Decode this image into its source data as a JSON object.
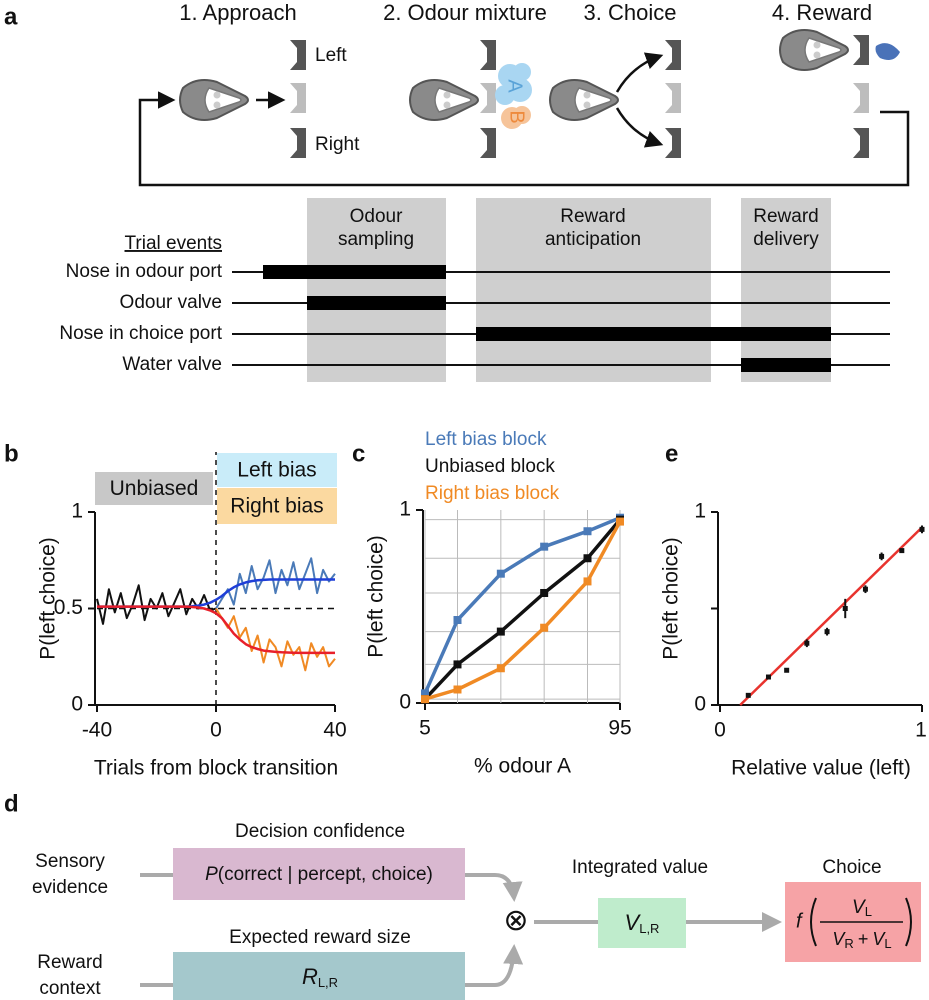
{
  "panels": {
    "a": {
      "label": "a",
      "steps": [
        "1. Approach",
        "2. Odour mixture",
        "3. Choice",
        "4. Reward"
      ],
      "ports": [
        "Left",
        "Right"
      ],
      "odours": [
        "A",
        "B"
      ],
      "phases": [
        [
          "Odour",
          "sampling"
        ],
        [
          "Reward",
          "anticipation"
        ],
        [
          "Reward",
          "delivery"
        ]
      ],
      "events_title": "Trial events",
      "events": [
        "Nose in odour port",
        "Odour valve",
        "Nose in choice port",
        "Water valve"
      ]
    },
    "d": {
      "label": "d",
      "sensory": [
        "Sensory",
        "evidence"
      ],
      "context": [
        "Reward",
        "context"
      ],
      "confidence_title": "Decision confidence",
      "confidence_formula": [
        "P",
        "(correct | percept, choice)"
      ],
      "reward_title": "Expected reward size",
      "reward_symbol": {
        "main": "R",
        "sub": "L,R"
      },
      "combine": "⊗",
      "integrated_title": "Integrated value",
      "integrated_symbol": {
        "main": "V",
        "sub": "L,R"
      },
      "choice_title": "Choice",
      "choice_formula": {
        "f": "f",
        "numerator": {
          "main": "V",
          "sub": "L"
        },
        "denominator": [
          {
            "main": "V",
            "sub": "R"
          },
          "+",
          {
            "main": "V",
            "sub": "L"
          }
        ]
      }
    }
  },
  "chart_data": [
    {
      "label": "b",
      "type": "line",
      "x_label": "Trials from block transition",
      "y_label": "P(left choice)",
      "xlim": [
        -40,
        40
      ],
      "ylim": [
        0,
        1
      ],
      "xticks": [
        -40,
        0,
        40
      ],
      "yticks": [
        0,
        0.5,
        1
      ],
      "hline": 0.5,
      "vline": 0,
      "x": [
        -40,
        -38,
        -36,
        -34,
        -32,
        -30,
        -28,
        -26,
        -24,
        -22,
        -20,
        -18,
        -16,
        -14,
        -12,
        -10,
        -8,
        -6,
        -4,
        -2,
        0,
        2,
        4,
        6,
        8,
        10,
        12,
        14,
        16,
        18,
        20,
        22,
        24,
        26,
        28,
        30,
        32,
        34,
        36,
        38,
        40
      ],
      "series": [
        {
          "name": "Unbiased",
          "color": "#111111",
          "fill": "#c8c8c8",
          "values": [
            0.55,
            0.42,
            0.6,
            0.48,
            0.58,
            0.45,
            0.52,
            0.62,
            0.44,
            0.55,
            0.5,
            0.58,
            0.46,
            0.53,
            0.6,
            0.47,
            0.55,
            0.5,
            0.57,
            0.49,
            0.5,
            null,
            null,
            null,
            null,
            null,
            null,
            null,
            null,
            null,
            null,
            null,
            null,
            null,
            null,
            null,
            null,
            null,
            null,
            null,
            null
          ]
        },
        {
          "name": "Left bias",
          "color": "#4a7ab8",
          "fill": "#c9ecf9",
          "values": [
            null,
            null,
            null,
            null,
            null,
            null,
            null,
            null,
            null,
            null,
            null,
            null,
            null,
            null,
            null,
            null,
            null,
            null,
            null,
            null,
            0.5,
            0.55,
            0.6,
            0.52,
            0.68,
            0.58,
            0.72,
            0.6,
            0.66,
            0.75,
            0.58,
            0.7,
            0.62,
            0.74,
            0.6,
            0.68,
            0.76,
            0.58,
            0.7,
            0.64,
            0.68
          ]
        },
        {
          "name": "Right bias",
          "color": "#f08a24",
          "fill": "#fbd9a0",
          "values": [
            null,
            null,
            null,
            null,
            null,
            null,
            null,
            null,
            null,
            null,
            null,
            null,
            null,
            null,
            null,
            null,
            null,
            null,
            null,
            null,
            0.5,
            0.45,
            0.4,
            0.46,
            0.35,
            0.4,
            0.28,
            0.36,
            0.22,
            0.34,
            0.3,
            0.2,
            0.33,
            0.26,
            0.3,
            0.18,
            0.32,
            0.25,
            0.3,
            0.2,
            0.24
          ]
        }
      ],
      "fits": [
        {
          "color": "#1f3fd8",
          "values": [
            0.51,
            0.51,
            0.51,
            0.51,
            0.51,
            0.51,
            0.51,
            0.51,
            0.51,
            0.51,
            0.51,
            0.51,
            0.51,
            0.51,
            0.51,
            0.51,
            0.512,
            0.515,
            0.52,
            0.53,
            0.545,
            0.565,
            0.59,
            0.61,
            0.625,
            0.635,
            0.642,
            0.646,
            0.648,
            0.65,
            0.65,
            0.65,
            0.65,
            0.65,
            0.65,
            0.65,
            0.65,
            0.65,
            0.65,
            0.65,
            0.65
          ]
        },
        {
          "color": "#e8202a",
          "values": [
            0.51,
            0.51,
            0.51,
            0.51,
            0.51,
            0.51,
            0.51,
            0.51,
            0.51,
            0.51,
            0.51,
            0.51,
            0.51,
            0.51,
            0.51,
            0.51,
            0.508,
            0.505,
            0.5,
            0.49,
            0.475,
            0.45,
            0.41,
            0.37,
            0.34,
            0.315,
            0.3,
            0.29,
            0.282,
            0.278,
            0.275,
            0.273,
            0.272,
            0.271,
            0.27,
            0.27,
            0.27,
            0.27,
            0.27,
            0.27,
            0.27
          ]
        }
      ]
    },
    {
      "label": "c",
      "type": "line",
      "markers": true,
      "grid": true,
      "x_label": "% odour A",
      "y_label": "P(left choice)",
      "xlim": [
        5,
        95
      ],
      "ylim": [
        0,
        1
      ],
      "xticks": [
        5,
        95
      ],
      "yticks": [
        0,
        1
      ],
      "x": [
        5,
        20,
        40,
        60,
        80,
        95
      ],
      "series": [
        {
          "name": "Left bias block",
          "color": "#4a7ab8",
          "values": [
            0.05,
            0.43,
            0.67,
            0.81,
            0.89,
            0.96
          ]
        },
        {
          "name": "Unbiased block",
          "color": "#111111",
          "values": [
            0.02,
            0.2,
            0.37,
            0.57,
            0.75,
            0.95
          ]
        },
        {
          "name": "Right bias block",
          "color": "#f08a24",
          "values": [
            0.02,
            0.07,
            0.18,
            0.39,
            0.63,
            0.94
          ]
        }
      ]
    },
    {
      "label": "e",
      "type": "scatter",
      "x_label": "Relative value (left)",
      "y_label": "P(left choice)",
      "xlim": [
        0,
        1
      ],
      "ylim": [
        0,
        1
      ],
      "xticks": [
        0,
        1
      ],
      "yticks": [
        0,
        1
      ],
      "minor_yticks": [
        0.5
      ],
      "x": [
        0.14,
        0.24,
        0.33,
        0.43,
        0.53,
        0.62,
        0.72,
        0.8,
        0.9,
        1.0
      ],
      "values": [
        0.05,
        0.145,
        0.18,
        0.32,
        0.38,
        0.5,
        0.6,
        0.77,
        0.8,
        0.91
      ],
      "errors": [
        0.01,
        0.01,
        0.01,
        0.02,
        0.02,
        0.05,
        0.02,
        0.02,
        0.01,
        0.02
      ],
      "color": "#111111",
      "fit": {
        "color": "#e8332e",
        "x": [
          0.1,
          1
        ],
        "y": [
          0,
          0.92
        ]
      }
    }
  ]
}
